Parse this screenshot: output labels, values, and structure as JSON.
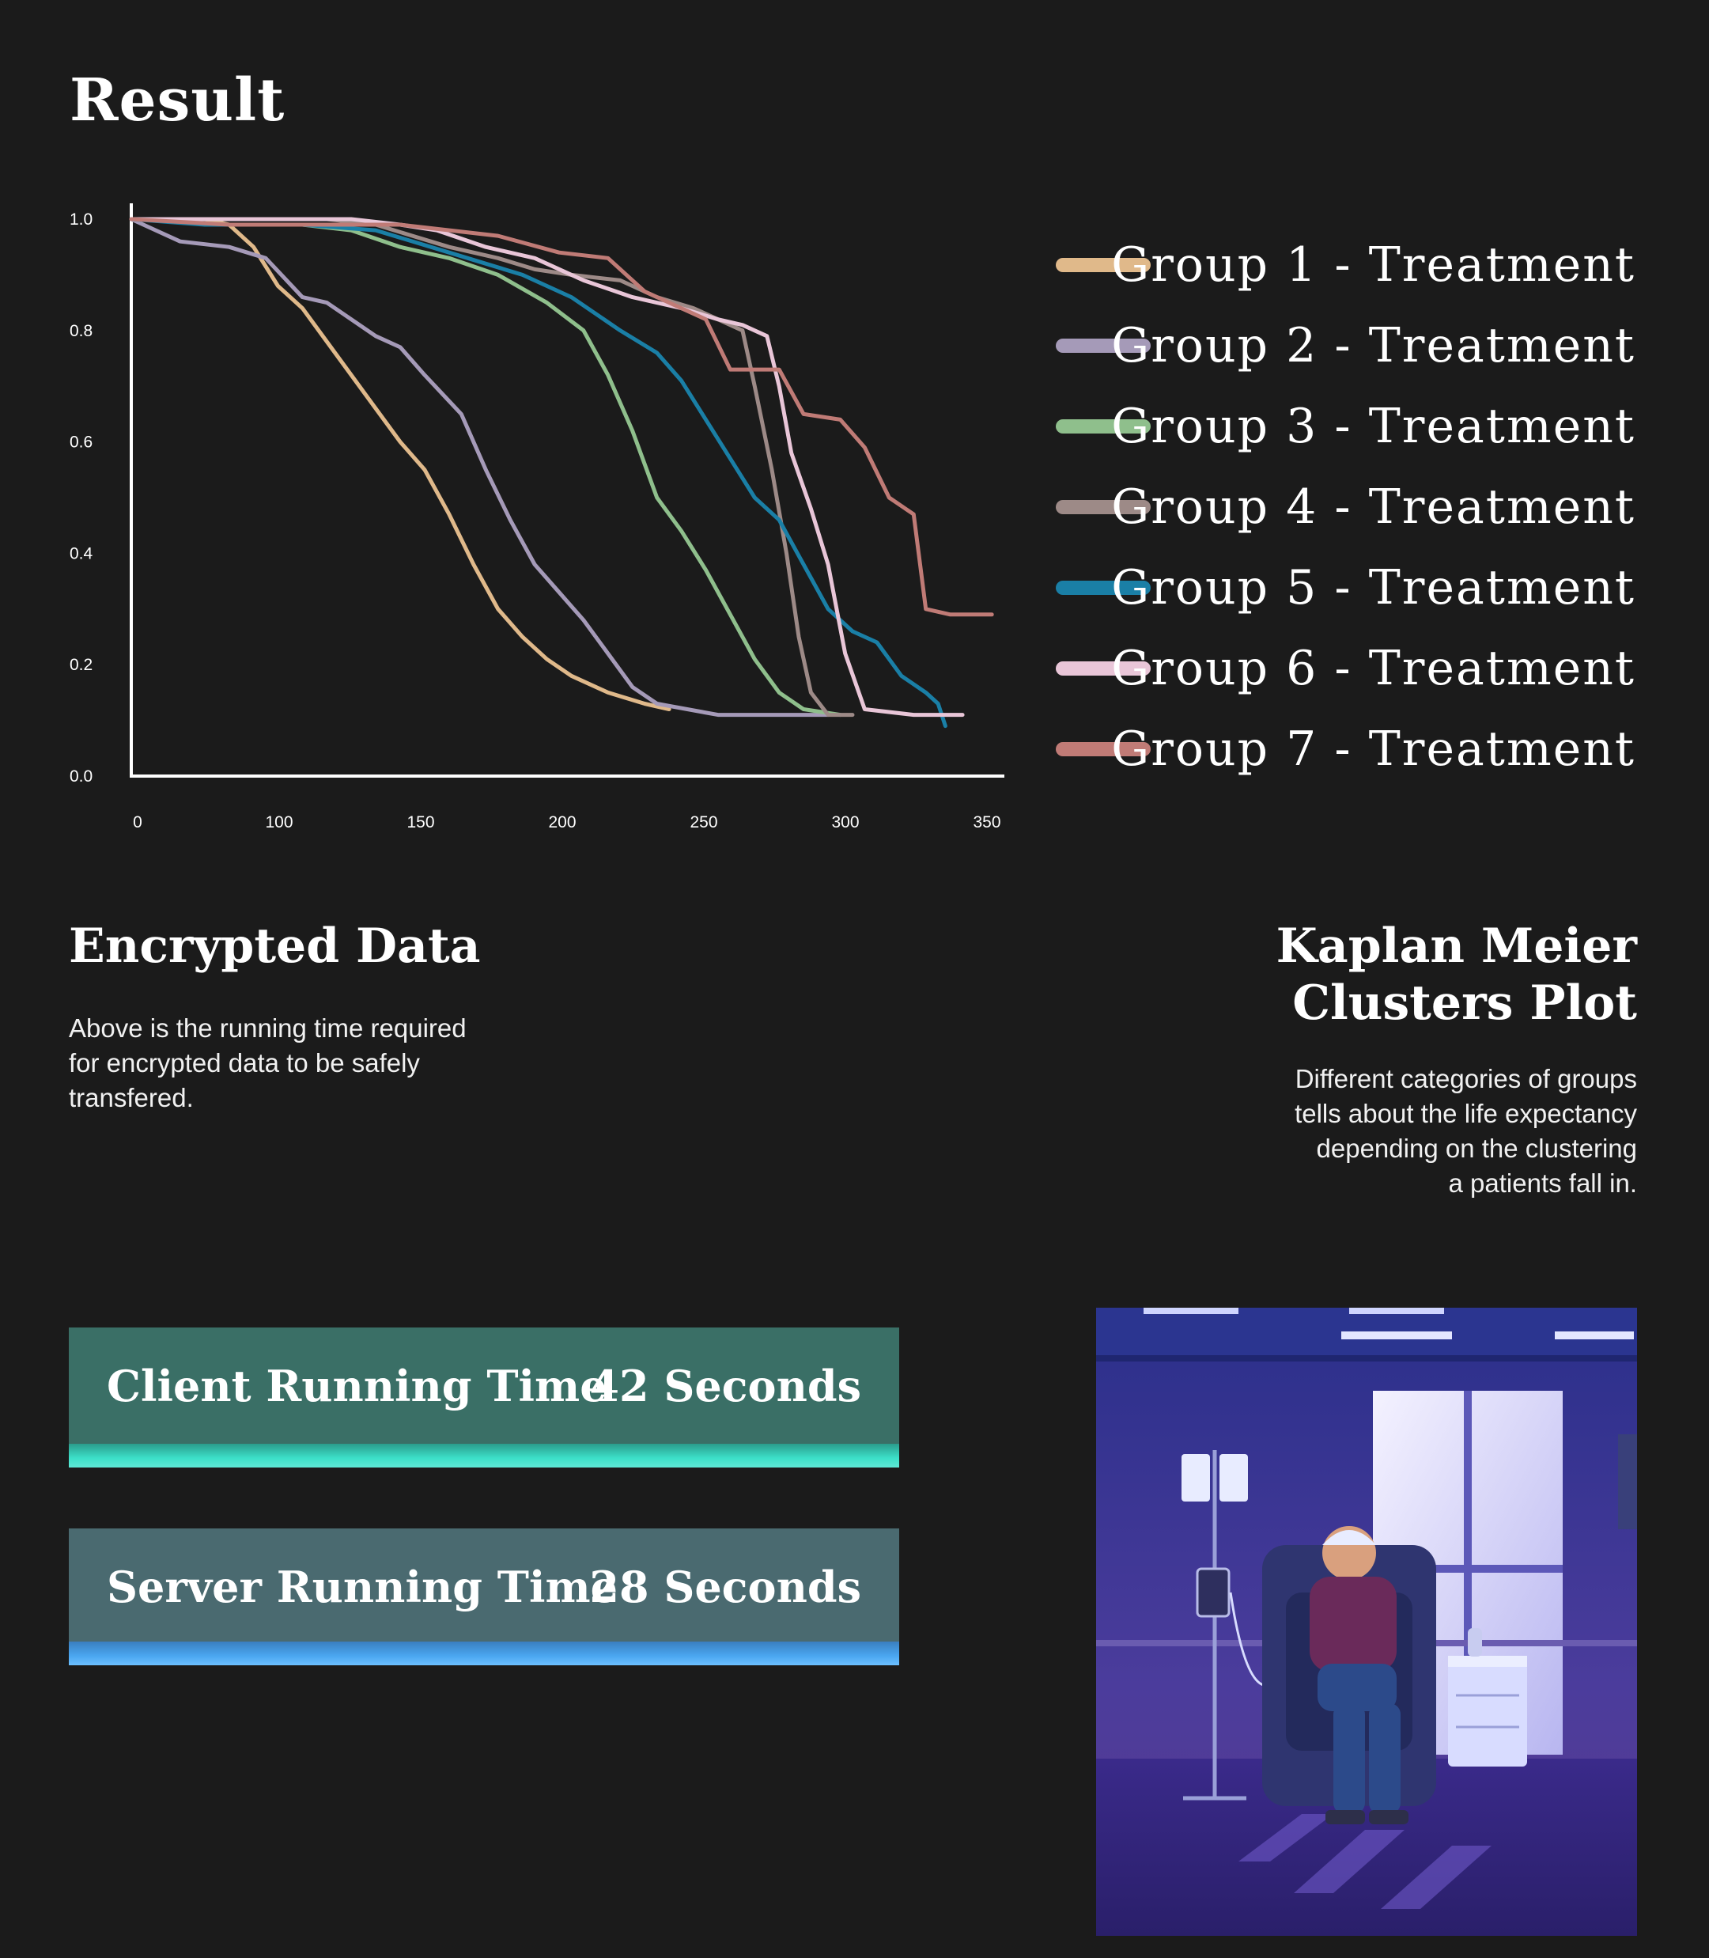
{
  "page": {
    "title": "Result"
  },
  "chart_data": {
    "type": "line",
    "title": "",
    "xlabel": "",
    "ylabel": "",
    "x_ticks": [
      "0",
      "100",
      "150",
      "200",
      "250",
      "300",
      "350"
    ],
    "y_ticks": [
      "1.0",
      "0.8",
      "0.6",
      "0.4",
      "0.2",
      "0.0"
    ],
    "xlim": [
      0,
      350
    ],
    "ylim": [
      0,
      1
    ],
    "grid": false,
    "legend_position": "right",
    "series": [
      {
        "name": "Group 1 - Treatment",
        "color": "#e0b98a",
        "points": [
          [
            0,
            1.0
          ],
          [
            30,
            1.0
          ],
          [
            40,
            0.99
          ],
          [
            50,
            0.95
          ],
          [
            60,
            0.88
          ],
          [
            70,
            0.84
          ],
          [
            80,
            0.78
          ],
          [
            90,
            0.72
          ],
          [
            100,
            0.66
          ],
          [
            110,
            0.6
          ],
          [
            120,
            0.55
          ],
          [
            130,
            0.47
          ],
          [
            140,
            0.38
          ],
          [
            150,
            0.3
          ],
          [
            160,
            0.25
          ],
          [
            170,
            0.21
          ],
          [
            180,
            0.18
          ],
          [
            195,
            0.15
          ],
          [
            210,
            0.13
          ],
          [
            220,
            0.12
          ]
        ]
      },
      {
        "name": "Group 2 - Treatment",
        "color": "#a59ab8",
        "points": [
          [
            0,
            1.0
          ],
          [
            10,
            0.98
          ],
          [
            20,
            0.96
          ],
          [
            40,
            0.95
          ],
          [
            55,
            0.93
          ],
          [
            70,
            0.86
          ],
          [
            80,
            0.85
          ],
          [
            90,
            0.82
          ],
          [
            100,
            0.79
          ],
          [
            110,
            0.77
          ],
          [
            120,
            0.72
          ],
          [
            135,
            0.65
          ],
          [
            145,
            0.55
          ],
          [
            155,
            0.46
          ],
          [
            165,
            0.38
          ],
          [
            175,
            0.33
          ],
          [
            185,
            0.28
          ],
          [
            195,
            0.22
          ],
          [
            205,
            0.16
          ],
          [
            215,
            0.13
          ],
          [
            240,
            0.11
          ],
          [
            285,
            0.11
          ]
        ]
      },
      {
        "name": "Group 3 - Treatment",
        "color": "#8fbf8c",
        "points": [
          [
            0,
            1.0
          ],
          [
            40,
            0.99
          ],
          [
            70,
            0.99
          ],
          [
            90,
            0.98
          ],
          [
            110,
            0.95
          ],
          [
            130,
            0.93
          ],
          [
            150,
            0.9
          ],
          [
            170,
            0.85
          ],
          [
            185,
            0.8
          ],
          [
            195,
            0.72
          ],
          [
            205,
            0.62
          ],
          [
            215,
            0.5
          ],
          [
            225,
            0.44
          ],
          [
            235,
            0.37
          ],
          [
            245,
            0.29
          ],
          [
            255,
            0.21
          ],
          [
            265,
            0.15
          ],
          [
            275,
            0.12
          ],
          [
            290,
            0.11
          ]
        ]
      },
      {
        "name": "Group 4 - Treatment",
        "color": "#9d8a87",
        "points": [
          [
            0,
            1.0
          ],
          [
            30,
            1.0
          ],
          [
            80,
            1.0
          ],
          [
            100,
            0.99
          ],
          [
            115,
            0.97
          ],
          [
            130,
            0.95
          ],
          [
            150,
            0.93
          ],
          [
            165,
            0.91
          ],
          [
            180,
            0.9
          ],
          [
            200,
            0.89
          ],
          [
            215,
            0.86
          ],
          [
            230,
            0.84
          ],
          [
            240,
            0.82
          ],
          [
            250,
            0.8
          ],
          [
            255,
            0.7
          ],
          [
            262,
            0.55
          ],
          [
            268,
            0.4
          ],
          [
            273,
            0.25
          ],
          [
            278,
            0.15
          ],
          [
            285,
            0.11
          ],
          [
            295,
            0.11
          ]
        ]
      },
      {
        "name": "Group 5 - Treatment",
        "color": "#1a7fa6",
        "points": [
          [
            0,
            1.0
          ],
          [
            30,
            0.99
          ],
          [
            70,
            0.99
          ],
          [
            100,
            0.98
          ],
          [
            130,
            0.94
          ],
          [
            160,
            0.9
          ],
          [
            180,
            0.86
          ],
          [
            200,
            0.8
          ],
          [
            215,
            0.76
          ],
          [
            225,
            0.71
          ],
          [
            235,
            0.64
          ],
          [
            245,
            0.57
          ],
          [
            255,
            0.5
          ],
          [
            265,
            0.46
          ],
          [
            275,
            0.38
          ],
          [
            285,
            0.3
          ],
          [
            295,
            0.26
          ],
          [
            305,
            0.24
          ],
          [
            315,
            0.18
          ],
          [
            325,
            0.15
          ],
          [
            330,
            0.13
          ],
          [
            333,
            0.09
          ]
        ]
      },
      {
        "name": "Group 6 - Treatment",
        "color": "#e9c6d8",
        "points": [
          [
            0,
            1.0
          ],
          [
            60,
            1.0
          ],
          [
            90,
            1.0
          ],
          [
            110,
            0.99
          ],
          [
            125,
            0.98
          ],
          [
            145,
            0.95
          ],
          [
            165,
            0.93
          ],
          [
            185,
            0.89
          ],
          [
            205,
            0.86
          ],
          [
            225,
            0.84
          ],
          [
            240,
            0.82
          ],
          [
            250,
            0.81
          ],
          [
            260,
            0.79
          ],
          [
            265,
            0.7
          ],
          [
            270,
            0.58
          ],
          [
            278,
            0.48
          ],
          [
            285,
            0.38
          ],
          [
            292,
            0.22
          ],
          [
            300,
            0.12
          ],
          [
            320,
            0.11
          ],
          [
            335,
            0.11
          ],
          [
            340,
            0.11
          ]
        ]
      },
      {
        "name": "Group 7 - Treatment",
        "color": "#c07b76",
        "points": [
          [
            0,
            1.0
          ],
          [
            40,
            0.99
          ],
          [
            110,
            0.99
          ],
          [
            150,
            0.97
          ],
          [
            175,
            0.94
          ],
          [
            195,
            0.93
          ],
          [
            210,
            0.87
          ],
          [
            225,
            0.84
          ],
          [
            235,
            0.82
          ],
          [
            245,
            0.73
          ],
          [
            265,
            0.73
          ],
          [
            275,
            0.65
          ],
          [
            290,
            0.64
          ],
          [
            300,
            0.59
          ],
          [
            310,
            0.5
          ],
          [
            320,
            0.47
          ],
          [
            325,
            0.3
          ],
          [
            335,
            0.29
          ],
          [
            352,
            0.29
          ]
        ]
      }
    ]
  },
  "encrypted": {
    "title": "Encrypted Data",
    "description_lines": [
      "Above is the running time required",
      "for encrypted data to be safely",
      "transfered."
    ]
  },
  "kaplan": {
    "title_lines": [
      "Kaplan Meier",
      "Clusters Plot"
    ],
    "description_lines": [
      "Different categories of groups",
      "tells about the life expectancy",
      "depending on the clustering",
      "a patients fall in."
    ]
  },
  "client": {
    "label": "Client Running Time",
    "value": "42 Seconds",
    "bg": "#3a6f66",
    "bar": "#3ce0c8"
  },
  "server": {
    "label": "Server Running Time",
    "value": "28 Seconds",
    "bg": "#4a6a70",
    "bar": "#4aa6f0"
  },
  "illustration": {
    "icon": "patient-iv-illustration"
  }
}
